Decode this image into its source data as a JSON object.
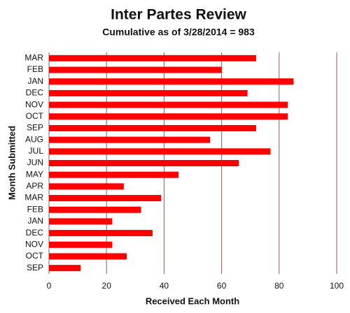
{
  "chart_data": {
    "type": "bar",
    "orientation": "horizontal",
    "title": "Inter Partes Review",
    "subtitle": "Cumulative as of 3/28/2014 = 983",
    "x_label": "Received Each Month",
    "y_label": "Month Submitted",
    "categories": [
      "MAR",
      "FEB",
      "JAN",
      "DEC",
      "NOV",
      "OCT",
      "SEP",
      "AUG",
      "JUL",
      "JUN",
      "MAY",
      "APR",
      "MAR",
      "FEB",
      "JAN",
      "DEC",
      "NOV",
      "OCT",
      "SEP"
    ],
    "values": [
      72,
      60,
      85,
      69,
      83,
      83,
      72,
      56,
      77,
      66,
      45,
      26,
      39,
      32,
      22,
      36,
      22,
      27,
      11
    ],
    "color": "#ff0000",
    "xlim": [
      0,
      100
    ],
    "xticks": [
      0,
      20,
      40,
      60,
      80,
      100
    ],
    "grid": true
  }
}
